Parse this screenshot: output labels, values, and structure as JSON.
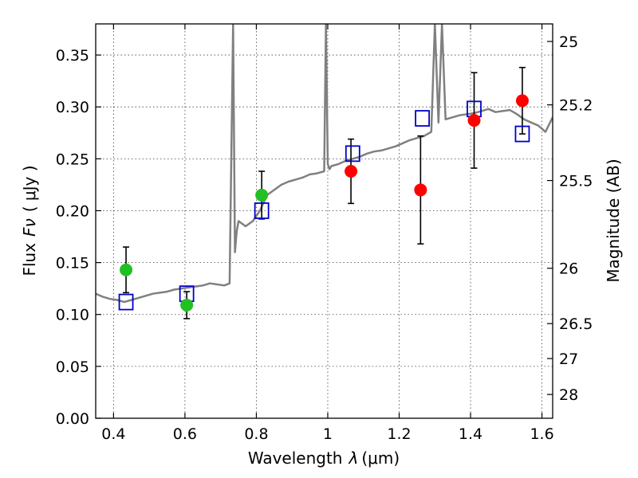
{
  "chart_data": {
    "type": "scatter",
    "xlabel_text": "Wavelength",
    "xlabel_symbol": "λ",
    "xlabel_unit": "(μm)",
    "ylabel_text": "Flux",
    "ylabel_symbol": "Fν",
    "ylabel_unit": "( μJy )",
    "y2label": "Magnitude (AB)",
    "xlim": [
      0.35,
      1.63
    ],
    "ylim": [
      0.0,
      0.38
    ],
    "xticks": [
      {
        "value": 0.4,
        "label": "0.4"
      },
      {
        "value": 0.6,
        "label": "0.6"
      },
      {
        "value": 0.8,
        "label": "0.8"
      },
      {
        "value": 1.0,
        "label": "1"
      },
      {
        "value": 1.2,
        "label": "1.2"
      },
      {
        "value": 1.4,
        "label": "1.4"
      },
      {
        "value": 1.6,
        "label": "1.6"
      }
    ],
    "yticks": [
      {
        "value": 0.0,
        "label": "0.00"
      },
      {
        "value": 0.05,
        "label": "0.05"
      },
      {
        "value": 0.1,
        "label": "0.10"
      },
      {
        "value": 0.15,
        "label": "0.15"
      },
      {
        "value": 0.2,
        "label": "0.20"
      },
      {
        "value": 0.25,
        "label": "0.25"
      },
      {
        "value": 0.3,
        "label": "0.30"
      },
      {
        "value": 0.35,
        "label": "0.35"
      }
    ],
    "y2ticks": [
      {
        "mag": 25,
        "label": "25"
      },
      {
        "mag": 25.2,
        "label": "25.2"
      },
      {
        "mag": 25.5,
        "label": "25.5"
      },
      {
        "mag": 26,
        "label": "26"
      },
      {
        "mag": 26.5,
        "label": "26.5"
      },
      {
        "mag": 27,
        "label": "27"
      },
      {
        "mag": 28,
        "label": "28"
      }
    ],
    "colors": {
      "spectrum": "#808080",
      "green": "#22c022",
      "red": "#ff0000",
      "model": "#0000cc",
      "errorbar": "#000000"
    },
    "spectrum": {
      "name": "model spectrum",
      "x": [
        0.35,
        0.37,
        0.39,
        0.41,
        0.43,
        0.45,
        0.47,
        0.49,
        0.51,
        0.53,
        0.55,
        0.57,
        0.59,
        0.61,
        0.63,
        0.65,
        0.67,
        0.69,
        0.71,
        0.725,
        0.735,
        0.74,
        0.745,
        0.75,
        0.77,
        0.79,
        0.81,
        0.83,
        0.85,
        0.87,
        0.89,
        0.91,
        0.93,
        0.95,
        0.97,
        0.99,
        0.995,
        1.0,
        1.005,
        1.01,
        1.03,
        1.05,
        1.07,
        1.09,
        1.11,
        1.13,
        1.15,
        1.17,
        1.19,
        1.21,
        1.23,
        1.25,
        1.27,
        1.29,
        1.3,
        1.31,
        1.32,
        1.33,
        1.35,
        1.37,
        1.39,
        1.41,
        1.43,
        1.45,
        1.47,
        1.49,
        1.51,
        1.53,
        1.55,
        1.57,
        1.59,
        1.61,
        1.63
      ],
      "y": [
        0.12,
        0.117,
        0.115,
        0.114,
        0.112,
        0.114,
        0.116,
        0.118,
        0.12,
        0.121,
        0.122,
        0.124,
        0.125,
        0.126,
        0.127,
        0.128,
        0.13,
        0.129,
        0.128,
        0.13,
        0.38,
        0.16,
        0.18,
        0.19,
        0.185,
        0.19,
        0.2,
        0.215,
        0.22,
        0.225,
        0.228,
        0.23,
        0.232,
        0.235,
        0.236,
        0.238,
        0.38,
        0.245,
        0.24,
        0.243,
        0.245,
        0.248,
        0.25,
        0.252,
        0.255,
        0.257,
        0.258,
        0.26,
        0.262,
        0.265,
        0.268,
        0.27,
        0.272,
        0.276,
        0.38,
        0.285,
        0.38,
        0.288,
        0.29,
        0.292,
        0.293,
        0.294,
        0.296,
        0.298,
        0.295,
        0.296,
        0.297,
        0.293,
        0.288,
        0.285,
        0.282,
        0.276,
        0.29
      ]
    },
    "series": [
      {
        "name": "green points",
        "marker": "circle",
        "x": [
          0.435,
          0.605,
          0.815
        ],
        "y": [
          0.143,
          0.109,
          0.215
        ],
        "yerr": [
          0.022,
          0.013,
          0.023
        ]
      },
      {
        "name": "red points",
        "marker": "circle",
        "x": [
          1.065,
          1.26,
          1.41,
          1.545
        ],
        "y": [
          0.238,
          0.22,
          0.287,
          0.306
        ],
        "yerr": [
          0.031,
          0.052,
          0.046,
          0.032
        ]
      },
      {
        "name": "model photometry",
        "marker": "square",
        "x": [
          0.435,
          0.605,
          0.815,
          1.07,
          1.265,
          1.41,
          1.545
        ],
        "y": [
          0.112,
          0.12,
          0.2,
          0.255,
          0.289,
          0.298,
          0.274
        ]
      }
    ]
  }
}
